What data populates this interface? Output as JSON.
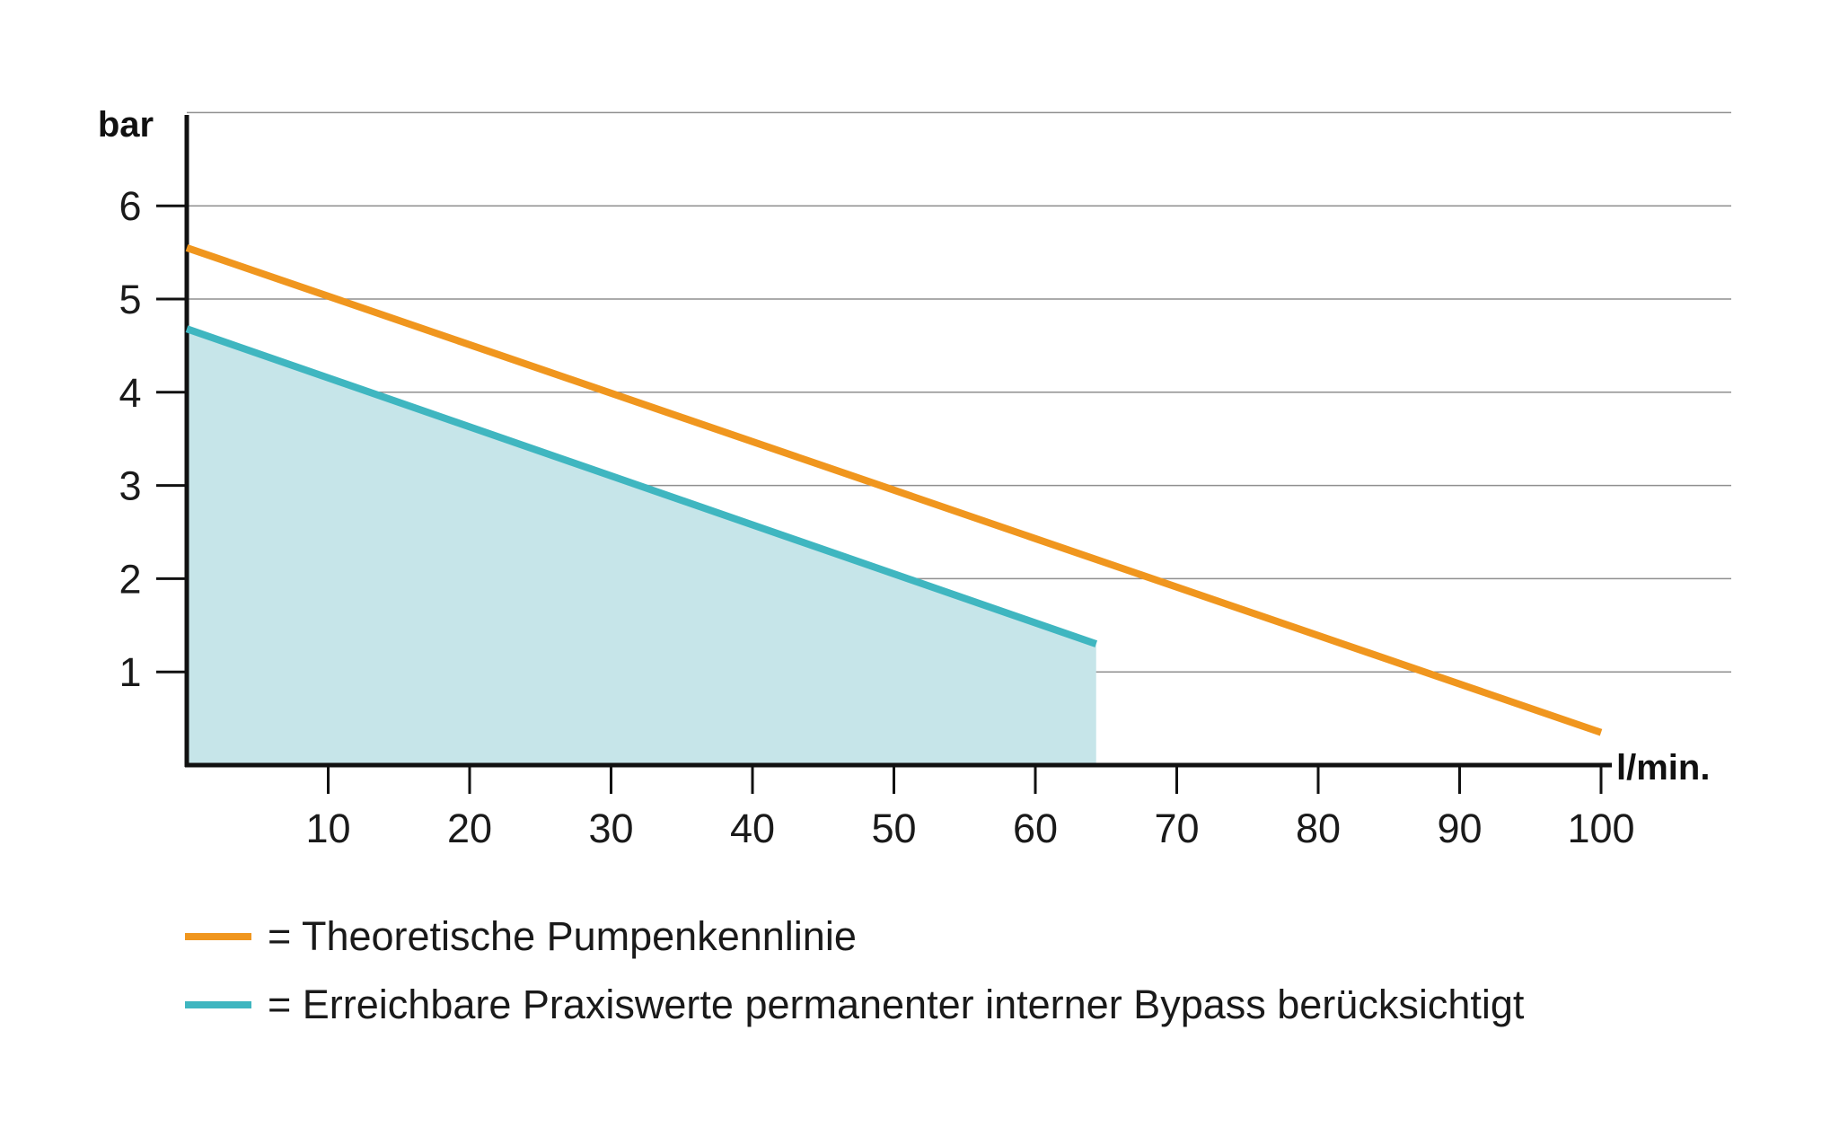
{
  "chart_data": {
    "type": "line",
    "xlabel": "l/min.",
    "ylabel": "bar",
    "xlim": [
      0,
      100
    ],
    "ylim": [
      0,
      7
    ],
    "xticks": [
      10,
      20,
      30,
      40,
      50,
      60,
      70,
      80,
      90,
      100
    ],
    "yticks": [
      1,
      2,
      3,
      4,
      5,
      6
    ],
    "grid": "horizontal",
    "series": [
      {
        "name": "Theoretische Pumpenkennlinie",
        "x": [
          0,
          100
        ],
        "y": [
          5.55,
          0.35
        ],
        "color": "#f0961e",
        "fill": false
      },
      {
        "name": "Erreichbare Praxiswerte permanenter interner Bypass berücksichtigt",
        "x": [
          0,
          64.3
        ],
        "y": [
          4.68,
          1.3
        ],
        "color": "#3fb6c0",
        "fill": true,
        "fill_color": "#c6e5e9"
      }
    ]
  },
  "legend": [
    {
      "label": "= Theoretische Pumpenkennlinie",
      "color": "#f0961e"
    },
    {
      "label": "= Erreichbare Praxiswerte permanenter interner Bypass berücksichtigt",
      "color": "#3fb6c0"
    }
  ]
}
